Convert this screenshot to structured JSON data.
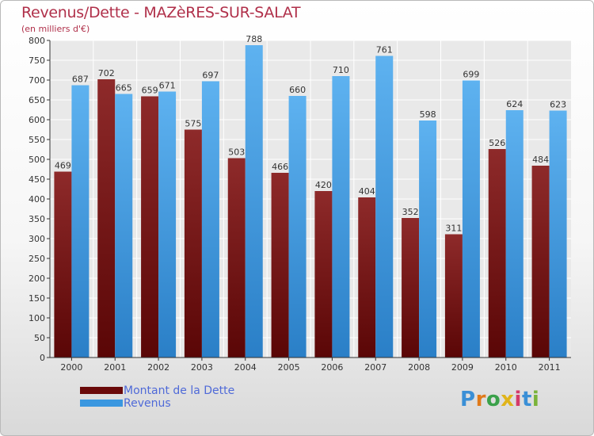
{
  "header": {
    "title": "Revenus/Dette - MAZèRES-SUR-SALAT",
    "subtitle": "(en milliers d'€)"
  },
  "colors": {
    "dette": "#7a0e0e",
    "revenus": "#3a97e0",
    "title": "#b0304a",
    "legend_text": "#4f6ad8"
  },
  "legend": {
    "items": [
      {
        "label": "Montant de la Dette",
        "color": "#6a0a0a"
      },
      {
        "label": "Revenus",
        "color": "#3a97e0"
      }
    ]
  },
  "logo": {
    "text": "Proxiti"
  },
  "chart_data": {
    "type": "bar",
    "title": "Revenus/Dette - MAZèRES-SUR-SALAT",
    "subtitle": "(en milliers d'€)",
    "categories": [
      "2000",
      "2001",
      "2002",
      "2003",
      "2004",
      "2005",
      "2006",
      "2007",
      "2008",
      "2009",
      "2010",
      "2011"
    ],
    "series": [
      {
        "name": "Montant de la Dette",
        "values": [
          469,
          702,
          659,
          575,
          503,
          466,
          420,
          404,
          352,
          311,
          526,
          484
        ]
      },
      {
        "name": "Revenus",
        "values": [
          687,
          665,
          671,
          697,
          788,
          660,
          710,
          761,
          598,
          699,
          624,
          623
        ]
      }
    ],
    "ylim": [
      0,
      800
    ],
    "ytick_step": 50,
    "grid": true,
    "legend_position": "bottom-left"
  }
}
